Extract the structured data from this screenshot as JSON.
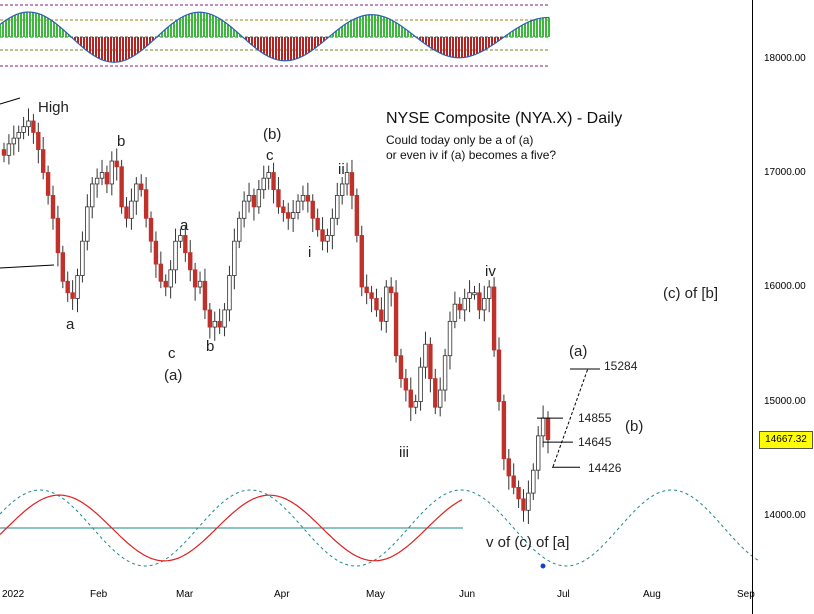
{
  "chart_data": {
    "type": "candlestick",
    "title": "NYSE Composite (NYA.X) - Daily",
    "subtitle_lines": [
      "Could today only be a of (a)",
      "or even iv if (a) becomes a five?"
    ],
    "y_axis": {
      "ticks": [
        18000,
        17000,
        16000,
        15000,
        14000
      ],
      "tick_labels": [
        "18000.00",
        "17000.00",
        "16000.00",
        "15000.00",
        "14000.00"
      ],
      "range": [
        13500,
        18500
      ]
    },
    "x_axis": {
      "tick_labels": [
        "2022",
        "Feb",
        "Mar",
        "Apr",
        "May",
        "Jun",
        "Jul",
        "Aug",
        "Sep"
      ]
    },
    "last_price_label": "14667.32",
    "levels": [
      {
        "label": "15284",
        "value": 15284
      },
      {
        "label": "14855",
        "value": 14855
      },
      {
        "label": "14645",
        "value": 14645
      },
      {
        "label": "14426",
        "value": 14426
      }
    ],
    "wave_labels": {
      "high": "High",
      "a1": "a",
      "b1": "b",
      "c1": "c",
      "paren_a": "(a)",
      "a2": "a",
      "b2": "b",
      "paren_b": "(b)",
      "c2": "c",
      "i": "i",
      "ii": "ii",
      "iii": "iii",
      "iv": "iv",
      "v_c_a": "v of (c) of [a]",
      "a_future": "(a)",
      "b_future": "(b)",
      "c_of_b": "(c) of [b]"
    },
    "close_series": [
      17150,
      17250,
      17300,
      17350,
      17400,
      17450,
      17350,
      17200,
      17000,
      16800,
      16600,
      16300,
      16050,
      15950,
      15900,
      16100,
      16400,
      16700,
      16900,
      16950,
      17000,
      16900,
      17100,
      17050,
      16700,
      16600,
      16750,
      16900,
      16850,
      16600,
      16400,
      16200,
      16050,
      16000,
      16150,
      16400,
      16450,
      16300,
      16150,
      16000,
      16050,
      15800,
      15650,
      15700,
      15650,
      15800,
      16100,
      16400,
      16600,
      16750,
      16800,
      16700,
      16850,
      16950,
      17000,
      16850,
      16700,
      16650,
      16600,
      16650,
      16750,
      16800,
      16750,
      16600,
      16500,
      16400,
      16450,
      16600,
      16800,
      16900,
      17000,
      16800,
      16450,
      16000,
      15950,
      15900,
      15800,
      15700,
      16000,
      15950,
      15400,
      15200,
      15100,
      14950,
      15000,
      15300,
      15500,
      15200,
      14950,
      15100,
      15400,
      15700,
      15850,
      15800,
      15900,
      15950,
      15950,
      15800,
      15900,
      16000,
      15450,
      15000,
      14500,
      14350,
      14250,
      14150,
      14050,
      14200,
      14400,
      14700,
      14855,
      14667
    ]
  },
  "indicator_upper": {
    "bands": [
      "upper-outer",
      "upper-inner",
      "mid",
      "lower-inner",
      "lower-outer"
    ]
  },
  "indicator_lower": {
    "description": "cycle oscillator"
  },
  "colors": {
    "up": "#2f2f2f",
    "down": "#c0312b",
    "hist_up": "#3cb93c",
    "hist_down": "#b42222",
    "osc_line": "#e02020",
    "cycle": "#1a8a8a",
    "band": "#8a1a8a",
    "signal": "#2a5fb0"
  }
}
